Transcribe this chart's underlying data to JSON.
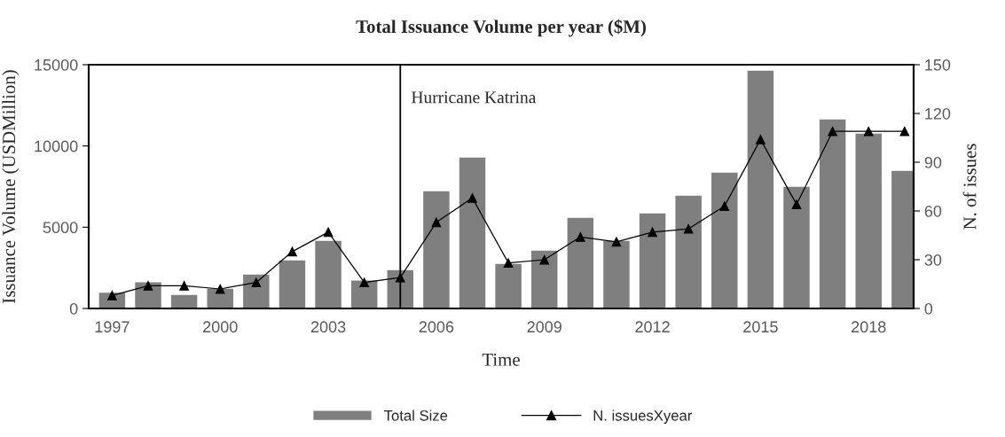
{
  "chart_data": {
    "type": "bar",
    "title": "Total Issuance Volume per year ($M)",
    "xlabel": "Time",
    "ylabel": "Issuance Volume (USDMillion)",
    "y2label": "N. of issues",
    "x": [
      1997,
      1998,
      1999,
      2000,
      2001,
      2002,
      2003,
      2004,
      2005,
      2006,
      2007,
      2008,
      2009,
      2010,
      2011,
      2012,
      2013,
      2014,
      2015,
      2016,
      2017,
      2018,
      2019
    ],
    "series": [
      {
        "name": "Total Size",
        "color": "#7f7f7f",
        "values": [
          1000,
          1650,
          870,
          1250,
          2130,
          3000,
          4200,
          1750,
          2400,
          7250,
          9330,
          2780,
          3600,
          5620,
          4200,
          5890,
          6980,
          8400,
          14670,
          7530,
          11670,
          10800,
          8510
        ]
      },
      {
        "name": "N. issuesXyear",
        "type": "line",
        "axis": "y2",
        "color": "#000000",
        "marker": "triangle",
        "values": [
          8,
          14,
          14,
          12,
          16,
          35,
          47,
          16,
          19,
          53,
          68,
          28,
          30,
          44,
          41,
          47,
          49,
          63,
          104,
          64,
          109,
          109,
          109
        ]
      }
    ],
    "xlim": [
      1996.35,
      2019.25
    ],
    "xticks": [
      1997,
      2000,
      2003,
      2006,
      2009,
      2012,
      2015,
      2018
    ],
    "ylim": [
      0,
      15000
    ],
    "yticks": [
      0,
      5000,
      10000,
      15000
    ],
    "y2lim": [
      0,
      150
    ],
    "y2ticks": [
      0,
      30,
      60,
      90,
      120,
      150
    ],
    "ref_lines": [
      {
        "axis": "x",
        "value": 2005,
        "label": "Hurricane Katrina",
        "color": "#000000"
      }
    ],
    "grid": false,
    "legend": "bottom"
  }
}
